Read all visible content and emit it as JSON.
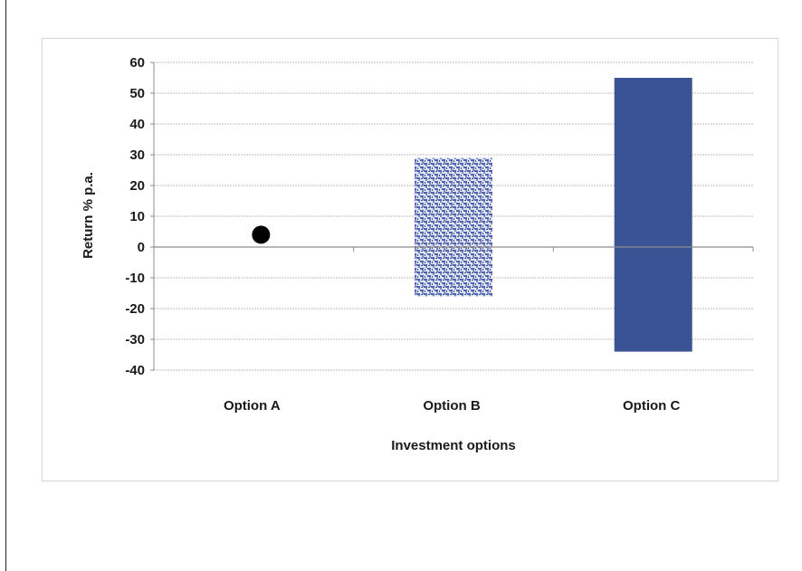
{
  "colors": {
    "bar_fill": "#3a5394",
    "pattern_fill": "#5a6fb8",
    "marker": "#000000",
    "gridline": "#bdbdbd",
    "axis": "#8c8c8c"
  },
  "chart_data": {
    "type": "range",
    "title": "",
    "xlabel": "Investment options",
    "ylabel": "Return % p.a.",
    "ylim": [
      -40,
      60
    ],
    "yticks": [
      60,
      50,
      40,
      30,
      20,
      10,
      0,
      -10,
      -20,
      -30,
      -40
    ],
    "grid": true,
    "categories": [
      "Option A",
      "Option B",
      "Option C"
    ],
    "series": [
      {
        "values": [
          {
            "category": "Option A",
            "kind": "point",
            "value": 4
          },
          {
            "category": "Option B",
            "kind": "range",
            "low": -16,
            "high": 29,
            "fill": "pattern"
          },
          {
            "category": "Option C",
            "kind": "range",
            "low": -34,
            "high": 55,
            "fill": "solid"
          }
        ]
      }
    ]
  }
}
